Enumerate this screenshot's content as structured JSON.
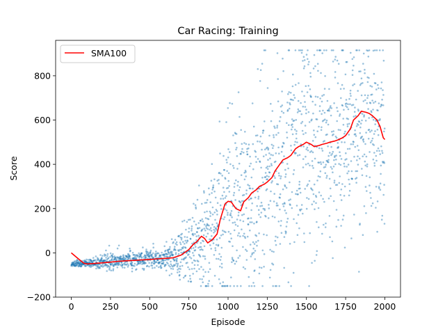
{
  "chart_data": {
    "type": "scatter",
    "title": "Car Racing: Training",
    "xlabel": "Episode",
    "ylabel": "Score",
    "xlim": [
      -100,
      2100
    ],
    "ylim": [
      -200,
      960
    ],
    "xticks": [
      0,
      250,
      500,
      750,
      1000,
      1250,
      1500,
      1750,
      2000
    ],
    "yticks": [
      -200,
      0,
      200,
      400,
      600,
      800
    ],
    "grid": false,
    "legend": {
      "placement": "top-left",
      "entries": [
        "SMA100"
      ]
    },
    "colors": {
      "scatter": "#1f77b4",
      "sma": "#ff0000"
    },
    "scatter_profile": {
      "description_points": "Approximate per-episode score distribution read from the plot",
      "x": [
        0,
        100,
        200,
        300,
        400,
        500,
        600,
        650,
        700,
        750,
        800,
        850,
        900,
        950,
        1000,
        1050,
        1100,
        1150,
        1200,
        1250,
        1300,
        1350,
        1400,
        1450,
        1500,
        1550,
        1600,
        1650,
        1700,
        1750,
        1800,
        1850,
        1900,
        1950,
        2000
      ],
      "center": [
        -52,
        -48,
        -42,
        -38,
        -34,
        -28,
        -22,
        -15,
        -5,
        20,
        50,
        80,
        110,
        150,
        220,
        210,
        230,
        260,
        280,
        320,
        380,
        420,
        440,
        480,
        490,
        480,
        490,
        500,
        510,
        540,
        580,
        620,
        630,
        580,
        520
      ],
      "spread": [
        6,
        10,
        14,
        18,
        20,
        22,
        28,
        40,
        60,
        80,
        100,
        120,
        140,
        170,
        190,
        200,
        210,
        220,
        230,
        240,
        250,
        250,
        250,
        250,
        240,
        230,
        230,
        230,
        230,
        230,
        230,
        220,
        210,
        220,
        220
      ]
    },
    "series": [
      {
        "name": "SMA100",
        "x": [
          0,
          50,
          80,
          100,
          150,
          200,
          250,
          300,
          350,
          400,
          450,
          500,
          550,
          600,
          650,
          700,
          750,
          780,
          800,
          830,
          850,
          870,
          900,
          930,
          950,
          980,
          1000,
          1020,
          1050,
          1080,
          1100,
          1130,
          1150,
          1180,
          1200,
          1230,
          1250,
          1280,
          1300,
          1330,
          1350,
          1380,
          1400,
          1430,
          1450,
          1480,
          1500,
          1530,
          1550,
          1580,
          1600,
          1630,
          1650,
          1680,
          1700,
          1730,
          1750,
          1780,
          1800,
          1830,
          1850,
          1880,
          1900,
          1920,
          1950,
          1970,
          1990,
          2000
        ],
        "y": [
          0,
          -30,
          -47,
          -50,
          -48,
          -45,
          -42,
          -38,
          -36,
          -34,
          -32,
          -30,
          -27,
          -25,
          -22,
          -10,
          15,
          40,
          50,
          75,
          65,
          45,
          60,
          85,
          150,
          220,
          233,
          230,
          200,
          190,
          230,
          250,
          270,
          285,
          300,
          310,
          320,
          340,
          370,
          400,
          420,
          430,
          440,
          470,
          480,
          490,
          500,
          490,
          480,
          485,
          490,
          495,
          500,
          505,
          510,
          520,
          530,
          560,
          600,
          620,
          640,
          635,
          630,
          620,
          600,
          570,
          520,
          512
        ]
      }
    ]
  }
}
